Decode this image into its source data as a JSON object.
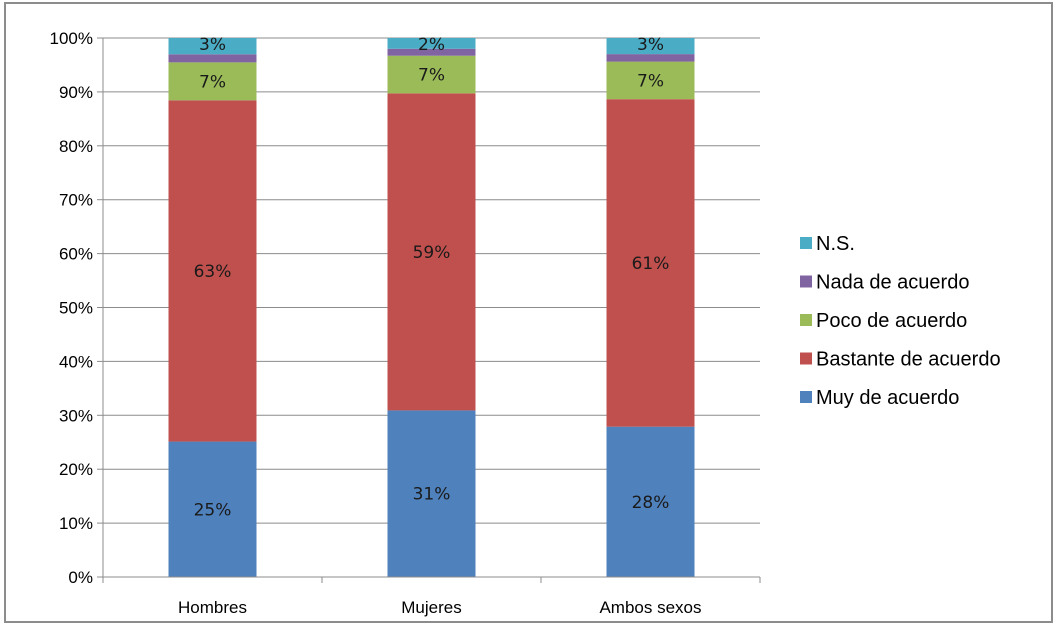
{
  "chart_data": {
    "type": "bar",
    "stacked": true,
    "percent_stacked": true,
    "categories": [
      "Hombres",
      "Mujeres",
      "Ambos sexos"
    ],
    "series": [
      {
        "name": "Muy de acuerdo",
        "color": "#4f81bd",
        "values": [
          25,
          31,
          28
        ],
        "labels": [
          "25%",
          "31%",
          "28%"
        ]
      },
      {
        "name": "Bastante de acuerdo",
        "color": "#c0504d",
        "values": [
          63,
          59,
          61
        ],
        "labels": [
          "63%",
          "59%",
          "61%"
        ]
      },
      {
        "name": "Poco de acuerdo",
        "color": "#9bbb59",
        "values": [
          7,
          7,
          7
        ],
        "labels": [
          "7%",
          "7%",
          "7%"
        ]
      },
      {
        "name": "Nada de acuerdo",
        "color": "#8064a2",
        "values": [
          1.5,
          1.3,
          1.4
        ],
        "labels": []
      },
      {
        "name": "N.S.",
        "color": "#4bacc6",
        "values": [
          3,
          2,
          3
        ],
        "labels": [
          "3%",
          "2%",
          "3%"
        ]
      }
    ],
    "y_ticks": [
      "0%",
      "10%",
      "20%",
      "30%",
      "40%",
      "50%",
      "60%",
      "70%",
      "80%",
      "90%",
      "100%"
    ],
    "ylim": [
      0,
      100
    ],
    "grid": true,
    "legend_position": "right"
  }
}
